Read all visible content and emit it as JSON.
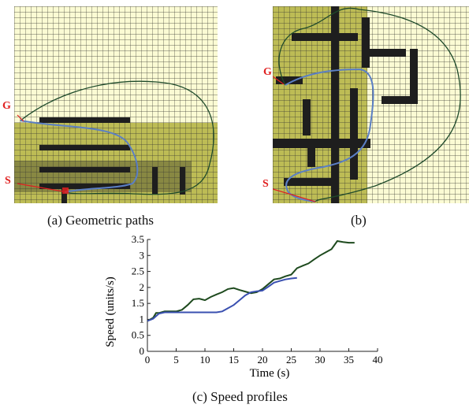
{
  "figure": {
    "panels": [
      {
        "id": "a",
        "caption": "(a) Geometric paths",
        "markers": {
          "goal": "G",
          "start": "S"
        },
        "colors": {
          "grid_bg": "#fbfbd4",
          "grid_line": "#3a3a32",
          "shade": "#bdbc55",
          "shade_dark": "#6c6c3a",
          "obstacle": "#1e1e1e",
          "path_outer": "#1e4a2a",
          "path_inner": "#5b7fc4",
          "marker": "#e02020"
        }
      },
      {
        "id": "b",
        "caption": "(b)",
        "markers": {
          "goal": "G",
          "start": "S"
        },
        "colors": {
          "grid_bg": "#fbfbd4",
          "grid_line": "#3a3a32",
          "shade": "#bdbc55",
          "obstacle": "#1e1e1e",
          "path_outer": "#1e4a2a",
          "path_inner": "#5b7fc4",
          "marker": "#e02020"
        }
      }
    ]
  },
  "chart_data": {
    "type": "line",
    "caption": "(c) Speed profiles",
    "xlabel": "Time (s)",
    "ylabel": "Speed (units/s)",
    "xlim": [
      0,
      40
    ],
    "ylim": [
      0,
      3.5
    ],
    "xticks": [
      "0",
      "5",
      "10",
      "15",
      "20",
      "25",
      "30",
      "35",
      "40"
    ],
    "yticks": [
      "0",
      "0.5",
      "1",
      "1.5",
      "2",
      "2.5",
      "3",
      "3.5"
    ],
    "grid": false,
    "series": [
      {
        "color": "#1e4a1e",
        "x": [
          0,
          1,
          1.5,
          2,
          3,
          4,
          5,
          6,
          7,
          8,
          9,
          10,
          11,
          12,
          13,
          14,
          15,
          16,
          17,
          18,
          19,
          20,
          21,
          22,
          23,
          24,
          25,
          26,
          27,
          28,
          29,
          30,
          31,
          32,
          33,
          34,
          35,
          36
        ],
        "y": [
          0.95,
          1.05,
          1.2,
          1.2,
          1.25,
          1.25,
          1.25,
          1.3,
          1.45,
          1.63,
          1.65,
          1.6,
          1.7,
          1.78,
          1.85,
          1.95,
          1.98,
          1.92,
          1.87,
          1.82,
          1.85,
          1.95,
          2.1,
          2.25,
          2.28,
          2.35,
          2.4,
          2.6,
          2.68,
          2.75,
          2.88,
          3.0,
          3.1,
          3.2,
          3.45,
          3.42,
          3.4,
          3.4
        ]
      },
      {
        "color": "#3a50b0",
        "x": [
          0,
          1,
          2,
          3,
          4,
          5,
          6,
          8,
          10,
          12,
          13,
          14,
          15,
          16,
          17,
          18,
          19,
          20,
          21,
          22,
          23,
          24,
          25,
          26
        ],
        "y": [
          0.95,
          1.02,
          1.18,
          1.22,
          1.22,
          1.22,
          1.22,
          1.22,
          1.22,
          1.22,
          1.25,
          1.35,
          1.45,
          1.6,
          1.75,
          1.85,
          1.88,
          1.9,
          2.02,
          2.15,
          2.2,
          2.25,
          2.28,
          2.3
        ]
      }
    ]
  }
}
